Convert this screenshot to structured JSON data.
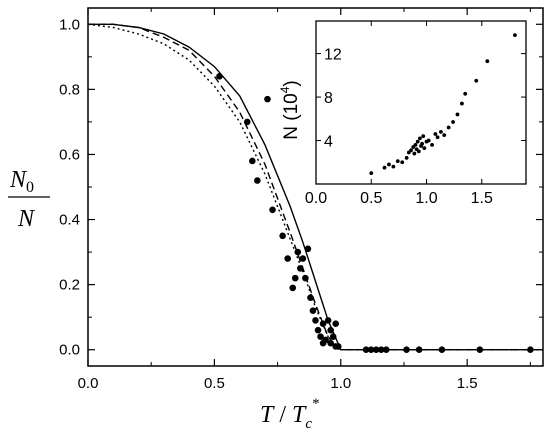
{
  "chart_data": [
    {
      "type": "scatter",
      "title": "",
      "xlabel": "T / Tc*",
      "xlabel_parts": {
        "var": "T",
        "slash": " / ",
        "base": "T",
        "sub": "c",
        "sup": "*"
      },
      "ylabel": "N0 / N",
      "ylabel_parts": {
        "num_base": "N",
        "num_sub": "0",
        "den": "N"
      },
      "xlim": [
        0.0,
        1.8
      ],
      "ylim": [
        -0.05,
        1.05
      ],
      "x_ticks": [
        0.0,
        0.5,
        1.0,
        1.5
      ],
      "x_tick_labels": [
        "0.0",
        "0.5",
        "1.0",
        "1.5"
      ],
      "y_ticks": [
        0.0,
        0.2,
        0.4,
        0.6,
        0.8,
        1.0
      ],
      "y_tick_labels": [
        "0.0",
        "0.2",
        "0.4",
        "0.6",
        "0.8",
        "1.0"
      ],
      "grid": false,
      "series": [
        {
          "style": "points",
          "x": [
            0.52,
            0.63,
            0.65,
            0.67,
            0.71,
            0.73,
            0.77,
            0.79,
            0.81,
            0.82,
            0.83,
            0.84,
            0.85,
            0.86,
            0.87,
            0.88,
            0.89,
            0.9,
            0.91,
            0.92,
            0.93,
            0.93,
            0.94,
            0.95,
            0.96,
            0.96,
            0.97,
            0.98,
            0.98,
            0.99,
            1.1,
            1.12,
            1.14,
            1.16,
            1.18,
            1.26,
            1.31,
            1.4,
            1.55,
            1.75
          ],
          "y": [
            0.84,
            0.7,
            0.58,
            0.52,
            0.77,
            0.43,
            0.35,
            0.28,
            0.19,
            0.22,
            0.3,
            0.25,
            0.28,
            0.22,
            0.31,
            0.16,
            0.12,
            0.09,
            0.06,
            0.04,
            0.02,
            0.08,
            0.03,
            0.09,
            0.02,
            0.06,
            0.04,
            0.01,
            0.08,
            0.01,
            0.0,
            0.0,
            0.0,
            0.0,
            0.0,
            0.0,
            0.0,
            0.0,
            0.0,
            0.0
          ]
        },
        {
          "style": "solid",
          "x": [
            0.0,
            0.1,
            0.2,
            0.3,
            0.4,
            0.5,
            0.6,
            0.7,
            0.8,
            0.85,
            0.9,
            0.95,
            1.0,
            1.02,
            1.8
          ],
          "y": [
            1.0,
            1.0,
            0.99,
            0.97,
            0.93,
            0.87,
            0.78,
            0.63,
            0.44,
            0.33,
            0.21,
            0.09,
            0.0,
            0.0,
            0.0
          ]
        },
        {
          "style": "dashed",
          "x": [
            0.0,
            0.1,
            0.2,
            0.3,
            0.4,
            0.5,
            0.6,
            0.7,
            0.8,
            0.85,
            0.9,
            0.95,
            0.98,
            1.0,
            1.8
          ],
          "y": [
            1.0,
            1.0,
            0.99,
            0.96,
            0.92,
            0.84,
            0.73,
            0.57,
            0.36,
            0.25,
            0.14,
            0.04,
            0.01,
            0.0,
            0.0
          ]
        },
        {
          "style": "dotted",
          "x": [
            0.0,
            0.1,
            0.2,
            0.3,
            0.4,
            0.5,
            0.6,
            0.7,
            0.8,
            0.85,
            0.9,
            0.95,
            0.98,
            1.0,
            1.8
          ],
          "y": [
            1.0,
            0.99,
            0.97,
            0.94,
            0.89,
            0.81,
            0.7,
            0.54,
            0.34,
            0.24,
            0.13,
            0.04,
            0.01,
            0.0,
            0.0
          ]
        }
      ]
    },
    {
      "type": "scatter",
      "title": "",
      "xlabel": "",
      "ylabel": "N (10⁴)",
      "ylabel_parts": {
        "base": "N (10",
        "sup": "4",
        "close": ")"
      },
      "xlim": [
        0.0,
        1.9
      ],
      "ylim": [
        0.0,
        15.0
      ],
      "x_ticks": [
        0.0,
        0.5,
        1.0,
        1.5
      ],
      "x_tick_labels": [
        "0.0",
        "0.5",
        "1.0",
        "1.5"
      ],
      "y_ticks": [
        4,
        8,
        12
      ],
      "y_tick_labels": [
        "4",
        "8",
        "12"
      ],
      "grid": false,
      "series": [
        {
          "style": "points",
          "x": [
            0.5,
            0.62,
            0.66,
            0.7,
            0.74,
            0.78,
            0.82,
            0.84,
            0.86,
            0.88,
            0.89,
            0.9,
            0.91,
            0.92,
            0.93,
            0.94,
            0.95,
            0.96,
            0.97,
            0.98,
            1.0,
            1.02,
            1.05,
            1.08,
            1.1,
            1.13,
            1.16,
            1.2,
            1.24,
            1.28,
            1.32,
            1.35,
            1.45,
            1.55,
            1.8
          ],
          "y": [
            1.0,
            1.5,
            1.8,
            1.6,
            2.1,
            2.0,
            2.4,
            2.9,
            3.1,
            3.4,
            2.8,
            3.6,
            3.2,
            3.9,
            3.0,
            4.2,
            3.5,
            3.7,
            4.4,
            3.3,
            3.9,
            4.0,
            3.6,
            4.6,
            4.3,
            4.8,
            4.5,
            5.2,
            5.7,
            6.4,
            7.4,
            8.3,
            9.5,
            11.3,
            13.7
          ]
        }
      ]
    }
  ]
}
